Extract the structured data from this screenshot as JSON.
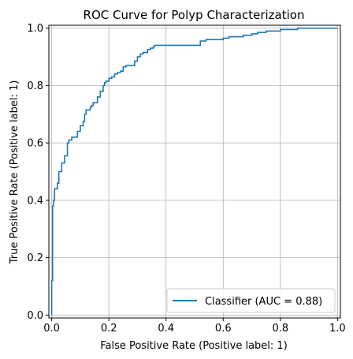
{
  "chart_data": {
    "type": "line",
    "title": "ROC Curve for Polyp Characterization",
    "xlabel": "False Positive Rate (Positive label: 1)",
    "ylabel": "True Positive Rate (Positive label: 1)",
    "xlim": [
      -0.01,
      1.01
    ],
    "ylim": [
      -0.01,
      1.01
    ],
    "grid": true,
    "legend_position": "lower-right",
    "xticks": [
      0.0,
      0.2,
      0.4,
      0.6,
      0.8,
      1.0
    ],
    "xtick_labels": [
      "0.0",
      "0.2",
      "0.4",
      "0.6",
      "0.8",
      "1.0"
    ],
    "yticks": [
      0.0,
      0.2,
      0.4,
      0.6,
      0.8,
      1.0
    ],
    "ytick_labels": [
      "0.0",
      "0.2",
      "0.4",
      "0.6",
      "0.8",
      "1.0"
    ],
    "series": [
      {
        "name": "Classifier (AUC = 0.88)",
        "color": "#1f77b4",
        "x": [
          0.0,
          0.0,
          0.003,
          0.003,
          0.006,
          0.006,
          0.01,
          0.01,
          0.02,
          0.02,
          0.025,
          0.025,
          0.035,
          0.035,
          0.045,
          0.045,
          0.055,
          0.055,
          0.06,
          0.06,
          0.07,
          0.07,
          0.09,
          0.09,
          0.1,
          0.1,
          0.11,
          0.11,
          0.115,
          0.115,
          0.12,
          0.12,
          0.135,
          0.135,
          0.14,
          0.14,
          0.145,
          0.145,
          0.16,
          0.16,
          0.17,
          0.17,
          0.18,
          0.18,
          0.185,
          0.185,
          0.19,
          0.19,
          0.2,
          0.2,
          0.21,
          0.21,
          0.22,
          0.22,
          0.23,
          0.23,
          0.24,
          0.24,
          0.25,
          0.25,
          0.26,
          0.26,
          0.29,
          0.29,
          0.3,
          0.3,
          0.31,
          0.31,
          0.32,
          0.32,
          0.335,
          0.335,
          0.345,
          0.345,
          0.355,
          0.355,
          0.36,
          0.36,
          0.37,
          0.37,
          0.38,
          0.38,
          0.4,
          0.4,
          0.52,
          0.52,
          0.54,
          0.54,
          0.6,
          0.6,
          0.62,
          0.62,
          0.67,
          0.67,
          0.7,
          0.7,
          0.72,
          0.72,
          0.75,
          0.75,
          0.8,
          0.8,
          0.86,
          0.86,
          0.94,
          0.94,
          0.985,
          1.0
        ],
        "y": [
          0.0,
          0.12,
          0.12,
          0.38,
          0.38,
          0.4,
          0.4,
          0.44,
          0.44,
          0.46,
          0.46,
          0.5,
          0.5,
          0.53,
          0.53,
          0.555,
          0.555,
          0.6,
          0.6,
          0.61,
          0.61,
          0.62,
          0.62,
          0.64,
          0.64,
          0.66,
          0.66,
          0.675,
          0.675,
          0.7,
          0.7,
          0.715,
          0.715,
          0.725,
          0.725,
          0.73,
          0.73,
          0.74,
          0.74,
          0.76,
          0.76,
          0.78,
          0.78,
          0.8,
          0.8,
          0.81,
          0.81,
          0.815,
          0.815,
          0.825,
          0.825,
          0.83,
          0.83,
          0.84,
          0.84,
          0.845,
          0.845,
          0.85,
          0.85,
          0.865,
          0.865,
          0.87,
          0.87,
          0.885,
          0.885,
          0.9,
          0.9,
          0.91,
          0.91,
          0.915,
          0.915,
          0.925,
          0.925,
          0.93,
          0.93,
          0.935,
          0.935,
          0.94,
          0.94,
          0.94,
          0.94,
          0.94,
          0.94,
          0.94,
          0.94,
          0.955,
          0.955,
          0.96,
          0.96,
          0.965,
          0.965,
          0.97,
          0.97,
          0.975,
          0.975,
          0.98,
          0.98,
          0.985,
          0.985,
          0.99,
          0.99,
          0.995,
          0.995,
          1.0,
          1.0,
          1.0,
          1.0,
          1.0
        ]
      }
    ]
  }
}
